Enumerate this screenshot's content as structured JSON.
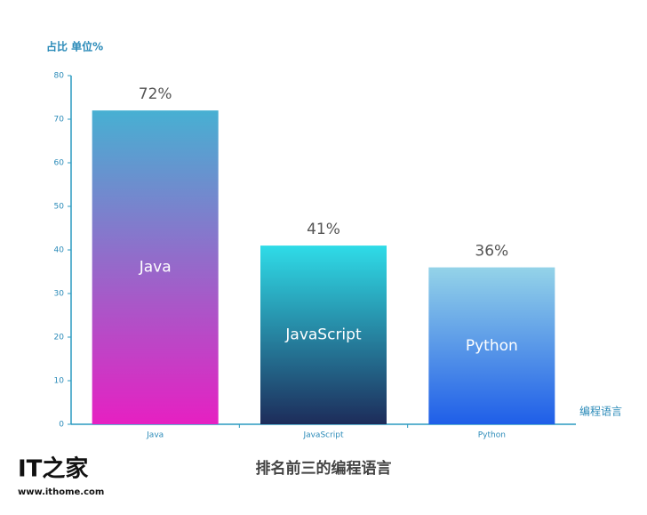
{
  "chart_data": {
    "type": "bar",
    "title": "排名前三的编程语言",
    "y_label": "占比 单位%",
    "x_label": "编程语言",
    "categories": [
      "Java",
      "JavaScript",
      "Python"
    ],
    "values": [
      72,
      41,
      36
    ],
    "value_labels": [
      "72%",
      "41%",
      "36%"
    ],
    "colors": [
      [
        "#47b0d2",
        "#e620c2"
      ],
      [
        "#2fdce8",
        "#1d2c5a"
      ],
      [
        "#94d3e8",
        "#1f5ee8"
      ]
    ],
    "ylim": [
      0,
      80
    ],
    "yticks": [
      0,
      10,
      20,
      30,
      40,
      50,
      60,
      70,
      80
    ],
    "grid": false
  },
  "watermark": {
    "logo": "IT之家",
    "url": "www.ithome.com"
  }
}
